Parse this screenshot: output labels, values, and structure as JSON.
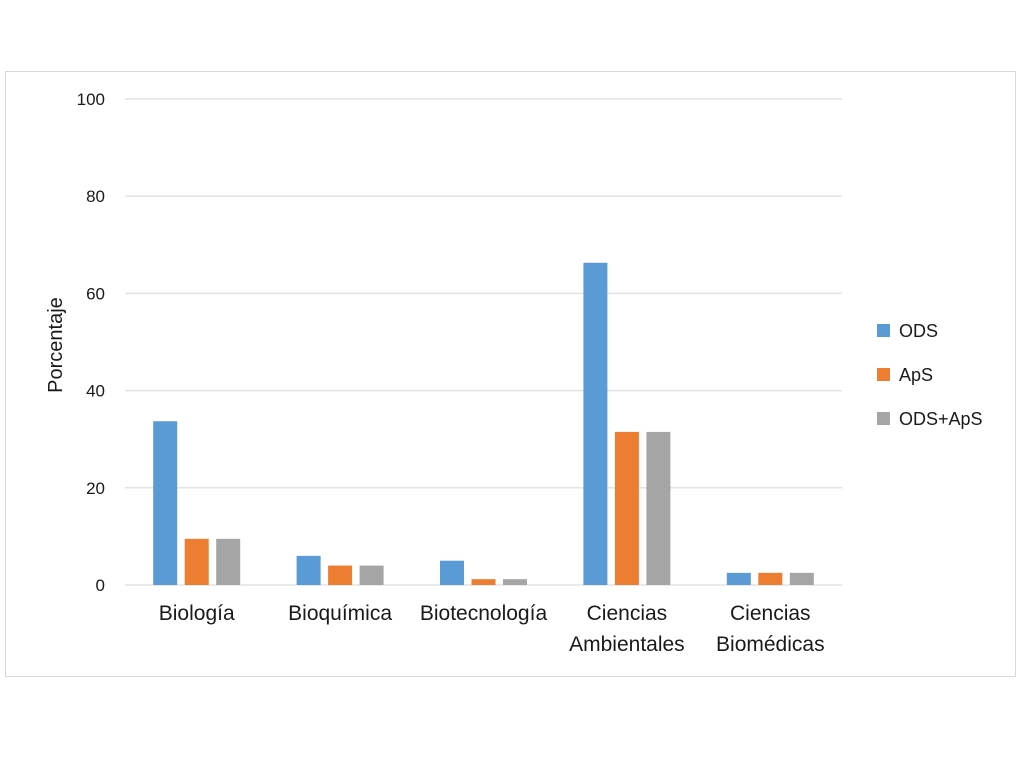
{
  "chart_data": {
    "type": "bar",
    "title": "",
    "xlabel": "",
    "ylabel": "Porcentaje",
    "ylim": [
      0,
      100
    ],
    "yticks": [
      0,
      20,
      40,
      60,
      80,
      100
    ],
    "grid": true,
    "legend_position": "right",
    "categories": [
      [
        "Biología"
      ],
      [
        "Bioquímica"
      ],
      [
        "Biotecnología"
      ],
      [
        "Ciencias",
        "Ambientales"
      ],
      [
        "Ciencias",
        "Biomédicas"
      ]
    ],
    "series": [
      {
        "name": "ODS",
        "color": "#5b9bd5",
        "values": [
          33.7,
          6.0,
          5.0,
          66.3,
          2.5
        ]
      },
      {
        "name": "ApS",
        "color": "#ed7d31",
        "values": [
          9.5,
          4.0,
          1.2,
          31.5,
          2.5
        ]
      },
      {
        "name": "ODS+ApS",
        "color": "#a5a5a5",
        "values": [
          9.5,
          4.0,
          1.2,
          31.5,
          2.5
        ]
      }
    ]
  }
}
